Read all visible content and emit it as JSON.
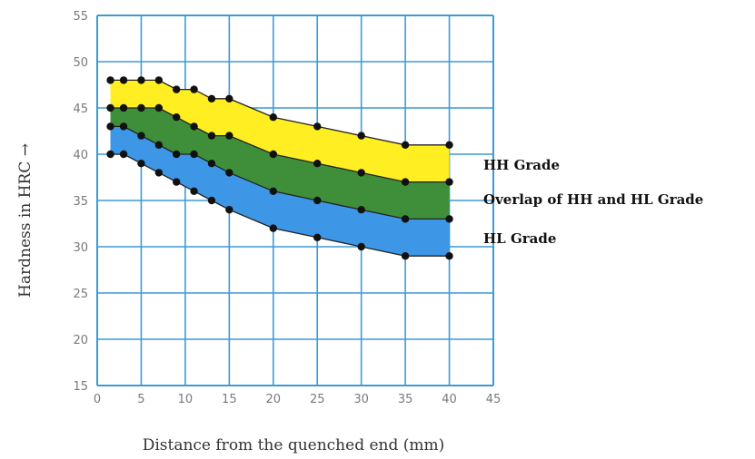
{
  "chart_data": {
    "type": "area",
    "xlabel": "Distance from the quenched end (mm)",
    "ylabel": "Hardness in HRC →",
    "xlim": [
      0,
      45
    ],
    "ylim": [
      15,
      55
    ],
    "xticks": [
      0,
      5,
      10,
      15,
      20,
      25,
      30,
      35,
      40,
      45
    ],
    "yticks": [
      15,
      20,
      25,
      30,
      35,
      40,
      45,
      50,
      55
    ],
    "grid": true,
    "legend_position": "right",
    "x": [
      1.5,
      3,
      5,
      7,
      9,
      11,
      13,
      15,
      20,
      25,
      30,
      35,
      40
    ],
    "boundaries": [
      {
        "id": "hh_max",
        "values": [
          48,
          48,
          48,
          48,
          47,
          47,
          46,
          46,
          44,
          43,
          42,
          41,
          41
        ]
      },
      {
        "id": "hl_max",
        "values": [
          45,
          45,
          45,
          45,
          44,
          43,
          42,
          42,
          40,
          39,
          38,
          37,
          37
        ]
      },
      {
        "id": "hh_min",
        "values": [
          43,
          43,
          42,
          41,
          40,
          40,
          39,
          38,
          36,
          35,
          34,
          33,
          33
        ]
      },
      {
        "id": "hl_min",
        "values": [
          40,
          40,
          39,
          38,
          37,
          36,
          35,
          34,
          32,
          31,
          30,
          29,
          29
        ]
      }
    ],
    "bands": [
      {
        "name": "HH Grade",
        "from": "hl_max",
        "to": "hh_max",
        "color": "#ffee22"
      },
      {
        "name": "Overlap of HH and HL Grade",
        "from": "hh_min",
        "to": "hl_max",
        "color": "#3f8f3a"
      },
      {
        "name": "HL Grade",
        "from": "hl_min",
        "to": "hh_min",
        "color": "#3d96e6"
      }
    ],
    "legend": [
      "HH Grade",
      "Overlap of HH and HL Grade",
      "HL Grade"
    ]
  },
  "colors": {
    "grid": "#3d9ad6",
    "points": "#111111",
    "boundary": "#222222"
  }
}
